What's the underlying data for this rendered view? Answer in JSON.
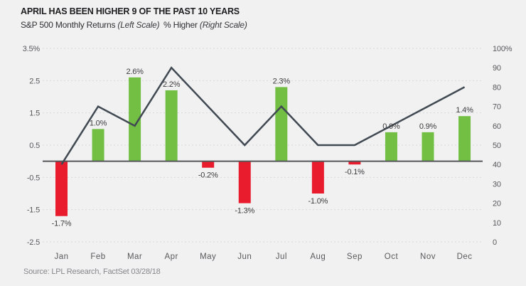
{
  "header": {
    "title": "APRIL HAS BEEN HIGHER 9 OF THE PAST 10 YEARS"
  },
  "legend": {
    "left": {
      "label": "S&P 500 Monthly Returns",
      "note": "(Left Scale)"
    },
    "right": {
      "label": "% Higher",
      "note": "(Right Scale)"
    }
  },
  "source": "Source: LPL Research, FactSet 03/28/18",
  "colors": {
    "positive_bar": "#72bf44",
    "negative_bar": "#e81c2d",
    "trend_line": "#414a52",
    "zero_axis": "#55565a",
    "gridline": "#d9d9da",
    "tick_text": "#58595b",
    "data_label_text": "#3c3c3e",
    "background": "#f1f1f2"
  },
  "chart_data": {
    "type": "bar",
    "title": "APRIL HAS BEEN HIGHER 9 OF THE PAST 10 YEARS",
    "categories": [
      "Jan",
      "Feb",
      "Mar",
      "Apr",
      "May",
      "Jun",
      "Jul",
      "Aug",
      "Sep",
      "Oct",
      "Nov",
      "Dec"
    ],
    "series": [
      {
        "name": "S&P 500 Monthly Returns",
        "type": "bar",
        "axis": "left",
        "values": [
          -1.7,
          1.0,
          2.6,
          2.2,
          -0.2,
          -1.3,
          2.3,
          -1.0,
          -0.1,
          0.9,
          0.9,
          1.4
        ],
        "data_labels": [
          "-1.7%",
          "1.0%",
          "2.6%",
          "2.2%",
          "-0.2%",
          "-1.3%",
          "2.3%",
          "-1.0%",
          "-0.1%",
          "0.9%",
          "0.9%",
          "1.4%"
        ]
      },
      {
        "name": "% Higher",
        "type": "line",
        "axis": "right",
        "values": [
          40,
          70,
          60,
          90,
          70,
          50,
          70,
          50,
          50,
          60,
          70,
          80
        ]
      }
    ],
    "left_axis": {
      "label": "S&P 500 Monthly Returns (Left Scale)",
      "range": [
        -2.5,
        3.5
      ],
      "ticks": [
        3.5,
        2.5,
        1.5,
        0.5,
        -0.5,
        -1.5,
        -2.5
      ],
      "tick_labels": [
        "3.5%",
        "2.5",
        "1.5",
        "0.5",
        "-0.5",
        "-1.5",
        "-2.5"
      ]
    },
    "right_axis": {
      "label": "% Higher (Right Scale)",
      "range": [
        0,
        100
      ],
      "ticks": [
        100,
        90,
        80,
        70,
        60,
        50,
        40,
        30,
        20,
        10,
        0
      ],
      "tick_labels": [
        "100%",
        "90",
        "80",
        "70",
        "60",
        "50",
        "40",
        "30",
        "20",
        "10",
        "0"
      ]
    },
    "grid": "dashed horizontal gridlines at left-axis ticks",
    "legend_position": "top-left, text only"
  }
}
